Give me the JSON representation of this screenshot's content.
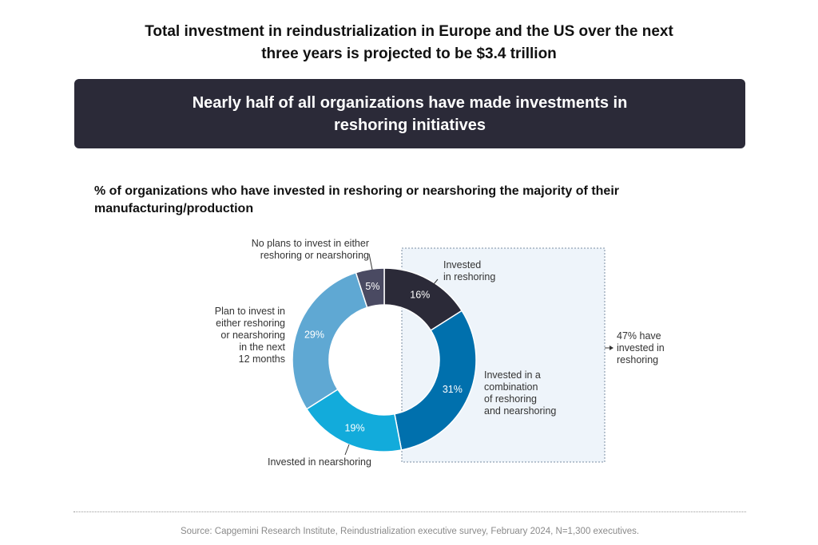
{
  "headline": {
    "line1": "Total investment in reindustrialization in Europe and the US over the next",
    "line2_prefix": "three years is projected to be ",
    "line2_emph": "$3.4 trillion"
  },
  "banner": {
    "text": "Nearly half of all organizations have made investments in reshoring initiatives"
  },
  "chart_data": {
    "type": "pie",
    "title": "% of organizations who have invested in reshoring or nearshoring the majority of their manufacturing/production",
    "slices": [
      {
        "name": "Invested in reshoring",
        "value": 16,
        "label": "16%",
        "color": "#2b2a38"
      },
      {
        "name": "Invested in a combination of reshoring and nearshoring",
        "value": 31,
        "label": "31%",
        "color": "#0070ad"
      },
      {
        "name": "Invested in nearshoring",
        "value": 19,
        "label": "19%",
        "color": "#12abdb"
      },
      {
        "name": "Plan to invest in either reshoring or nearshoring in the next 12 months",
        "value": 29,
        "label": "29%",
        "color": "#5fa8d3"
      },
      {
        "name": "No plans to invest in either reshoring or nearshoring",
        "value": 5,
        "label": "5%",
        "color": "#4a4a62"
      }
    ],
    "highlight_annotation": "47% have invested in reshoring"
  },
  "annotations": {
    "no_plans": [
      "No plans to invest in either",
      "reshoring or nearshoring"
    ],
    "plan": [
      "Plan to invest in",
      "either reshoring",
      "or nearshoring",
      "in the next",
      "12 months"
    ],
    "reshoring": [
      "Invested",
      "in reshoring"
    ],
    "combination": [
      "Invested in a",
      "combination",
      "of reshoring",
      "and nearshoring"
    ],
    "nearshoring": [
      "Invested in nearshoring"
    ],
    "highlight": [
      "47% have",
      "invested in",
      "reshoring"
    ]
  },
  "source": "Source: Capgemini Research Institute, Reindustrialization executive survey, February 2024, N=1,300 executives."
}
